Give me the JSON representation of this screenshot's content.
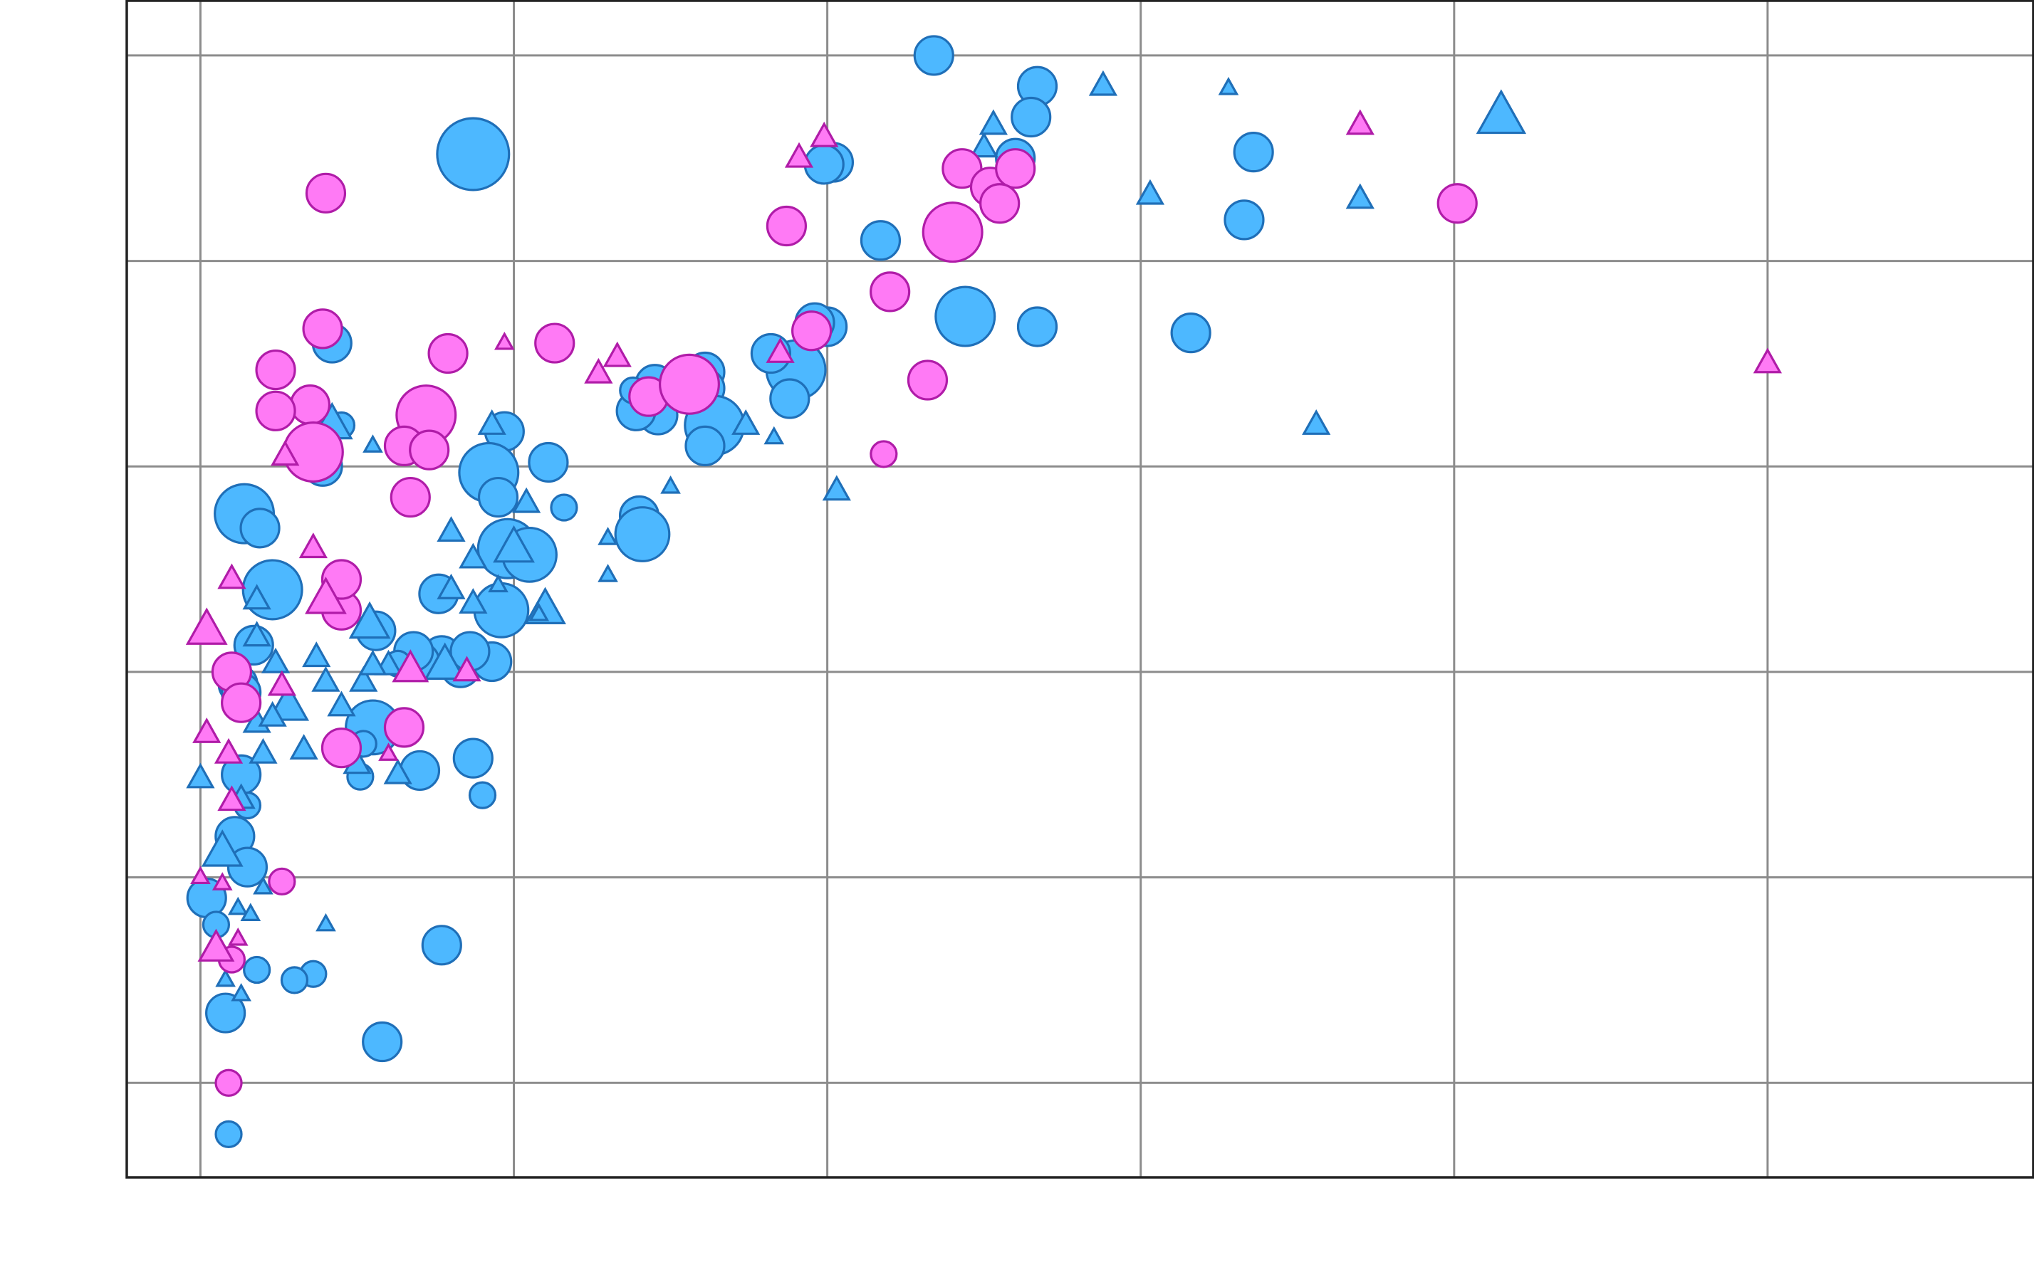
{
  "chart_data": {
    "type": "scatter",
    "title": "",
    "xlabel": "",
    "ylabel": "",
    "xlim": [
      -0.235,
      5.85
    ],
    "ylim": [
      -0.46,
      5.27
    ],
    "x_gridlines": [
      0,
      1,
      2,
      3,
      4,
      5
    ],
    "y_gridlines": [
      0,
      1,
      2,
      3,
      4,
      5
    ],
    "grid": true,
    "legend": "none",
    "series": [
      {
        "color": "#4db8ff",
        "stroke": "#1f6fb8",
        "points": [
          [
            0.87,
            4.52,
            2.8,
            "circle"
          ],
          [
            2.34,
            5.0,
            1.5,
            "circle"
          ],
          [
            2.67,
            4.85,
            1.5,
            "circle"
          ],
          [
            2.65,
            4.7,
            1.5,
            "circle"
          ],
          [
            2.6,
            4.5,
            1.5,
            "circle"
          ],
          [
            2.17,
            4.1,
            1.5,
            "circle"
          ],
          [
            2.44,
            3.73,
            2.3,
            "circle"
          ],
          [
            2.67,
            3.68,
            1.5,
            "circle"
          ],
          [
            2.0,
            3.68,
            1.5,
            "circle"
          ],
          [
            1.96,
            3.7,
            1.5,
            "circle"
          ],
          [
            1.45,
            3.4,
            1.5,
            "circle"
          ],
          [
            1.46,
            3.25,
            1.5,
            "circle"
          ],
          [
            1.61,
            3.46,
            1.5,
            "circle"
          ],
          [
            1.9,
            3.47,
            2.3,
            "circle"
          ],
          [
            1.61,
            3.38,
            1.5,
            "circle"
          ],
          [
            1.64,
            3.2,
            2.3,
            "circle"
          ],
          [
            1.88,
            3.33,
            1.5,
            "circle"
          ],
          [
            0.42,
            3.6,
            1.5,
            "circle"
          ],
          [
            0.45,
            3.2,
            1.0,
            "circle"
          ],
          [
            0.39,
            3.0,
            1.5,
            "circle"
          ],
          [
            0.97,
            3.17,
            1.5,
            "circle"
          ],
          [
            0.92,
            2.97,
            2.3,
            "circle"
          ],
          [
            0.95,
            2.85,
            1.5,
            "circle"
          ],
          [
            0.98,
            2.6,
            2.3,
            "circle"
          ],
          [
            1.05,
            2.57,
            2.1,
            "circle"
          ],
          [
            1.4,
            2.76,
            1.5,
            "circle"
          ],
          [
            1.41,
            2.67,
            2.1,
            "circle"
          ],
          [
            0.14,
            2.77,
            2.3,
            "circle"
          ],
          [
            0.19,
            2.7,
            1.5,
            "circle"
          ],
          [
            0.23,
            2.4,
            2.3,
            "circle"
          ],
          [
            0.17,
            2.13,
            1.5,
            "circle"
          ],
          [
            0.12,
            1.94,
            1.5,
            "circle"
          ],
          [
            0.96,
            2.3,
            2.1,
            "circle"
          ],
          [
            0.76,
            2.38,
            1.5,
            "circle"
          ],
          [
            0.77,
            2.08,
            1.5,
            "circle"
          ],
          [
            0.83,
            2.02,
            1.5,
            "circle"
          ],
          [
            0.93,
            2.05,
            1.5,
            "circle"
          ],
          [
            0.86,
            2.1,
            1.5,
            "circle"
          ],
          [
            0.7,
            2.05,
            1.5,
            "circle"
          ],
          [
            0.56,
            2.2,
            1.5,
            "circle"
          ],
          [
            0.68,
            2.1,
            1.5,
            "circle"
          ],
          [
            0.63,
            2.04,
            1.0,
            "circle"
          ],
          [
            0.55,
            1.73,
            2.1,
            "circle"
          ],
          [
            0.7,
            1.52,
            1.5,
            "circle"
          ],
          [
            0.87,
            1.58,
            1.5,
            "circle"
          ],
          [
            0.13,
            1.9,
            1.5,
            "circle"
          ],
          [
            0.11,
            1.2,
            1.5,
            "circle"
          ],
          [
            0.15,
            1.05,
            1.5,
            "circle"
          ],
          [
            0.13,
            1.5,
            1.5,
            "circle"
          ],
          [
            0.02,
            0.9,
            1.5,
            "circle"
          ],
          [
            0.05,
            0.77,
            1.0,
            "circle"
          ],
          [
            0.36,
            0.53,
            1.0,
            "circle"
          ],
          [
            0.08,
            0.34,
            1.5,
            "circle"
          ],
          [
            0.18,
            0.55,
            1.0,
            "circle"
          ],
          [
            0.77,
            0.67,
            1.5,
            "circle"
          ],
          [
            0.51,
            1.49,
            1.0,
            "circle"
          ],
          [
            0.15,
            1.35,
            1.0,
            "circle"
          ],
          [
            0.58,
            0.2,
            1.5,
            "circle"
          ],
          [
            0.3,
            0.5,
            1.0,
            "circle"
          ],
          [
            0.52,
            1.65,
            1.0,
            "circle"
          ],
          [
            0.9,
            1.4,
            1.0,
            "circle"
          ],
          [
            0.09,
            -0.25,
            1.0,
            "circle"
          ],
          [
            3.16,
            3.65,
            1.5,
            "circle"
          ],
          [
            1.61,
            3.1,
            1.5,
            "circle"
          ],
          [
            1.39,
            3.27,
            1.5,
            "circle"
          ],
          [
            1.38,
            3.37,
            1.0,
            "circle"
          ],
          [
            3.36,
            4.53,
            1.5,
            "circle"
          ],
          [
            3.33,
            4.2,
            1.5,
            "circle"
          ],
          [
            2.02,
            4.48,
            1.5,
            "circle"
          ],
          [
            1.99,
            4.47,
            1.5,
            "circle"
          ],
          [
            1.82,
            3.55,
            1.5,
            "circle"
          ],
          [
            1.16,
            2.8,
            1.0,
            "circle"
          ],
          [
            1.11,
            3.02,
            1.5,
            "circle"
          ],
          [
            4.15,
            4.7,
            2.8,
            "triangle"
          ],
          [
            2.88,
            4.85,
            1.5,
            "triangle"
          ],
          [
            2.5,
            4.55,
            1.5,
            "triangle"
          ],
          [
            3.03,
            4.32,
            1.5,
            "triangle"
          ],
          [
            3.7,
            4.3,
            1.5,
            "triangle"
          ],
          [
            2.53,
            4.66,
            1.5,
            "triangle"
          ],
          [
            3.28,
            4.84,
            1.0,
            "triangle"
          ],
          [
            1.74,
            3.2,
            1.5,
            "triangle"
          ],
          [
            3.56,
            3.2,
            1.5,
            "triangle"
          ],
          [
            1.83,
            3.14,
            1.0,
            "triangle"
          ],
          [
            2.03,
            2.88,
            1.5,
            "triangle"
          ],
          [
            1.3,
            2.65,
            1.0,
            "triangle"
          ],
          [
            1.04,
            2.82,
            1.5,
            "triangle"
          ],
          [
            0.93,
            3.2,
            1.5,
            "triangle"
          ],
          [
            0.75,
            3.27,
            1.0,
            "triangle"
          ],
          [
            0.42,
            3.2,
            2.3,
            "triangle"
          ],
          [
            0.55,
            3.1,
            1.0,
            "triangle"
          ],
          [
            1.0,
            2.6,
            2.3,
            "triangle"
          ],
          [
            1.1,
            2.3,
            2.3,
            "triangle"
          ],
          [
            0.8,
            2.4,
            1.5,
            "triangle"
          ],
          [
            0.87,
            2.33,
            1.5,
            "triangle"
          ],
          [
            1.3,
            2.47,
            1.0,
            "triangle"
          ],
          [
            1.08,
            2.28,
            1.0,
            "triangle"
          ],
          [
            0.95,
            2.42,
            1.0,
            "triangle"
          ],
          [
            0.54,
            2.23,
            2.3,
            "triangle"
          ],
          [
            0.18,
            2.35,
            1.5,
            "triangle"
          ],
          [
            0.78,
            2.03,
            2.3,
            "triangle"
          ],
          [
            0.18,
            2.17,
            1.5,
            "triangle"
          ],
          [
            0.24,
            2.04,
            1.5,
            "triangle"
          ],
          [
            0.37,
            2.07,
            1.5,
            "triangle"
          ],
          [
            0.52,
            1.95,
            1.5,
            "triangle"
          ],
          [
            0.6,
            2.03,
            1.5,
            "triangle"
          ],
          [
            0.55,
            2.03,
            1.5,
            "triangle"
          ],
          [
            0.4,
            1.95,
            1.5,
            "triangle"
          ],
          [
            0.28,
            1.83,
            2.3,
            "triangle"
          ],
          [
            0.45,
            1.83,
            1.5,
            "triangle"
          ],
          [
            0.18,
            1.75,
            1.5,
            "triangle"
          ],
          [
            0.33,
            1.62,
            1.5,
            "triangle"
          ],
          [
            0.2,
            1.6,
            1.5,
            "triangle"
          ],
          [
            0.5,
            1.55,
            1.5,
            "triangle"
          ],
          [
            0.0,
            1.48,
            1.5,
            "triangle"
          ],
          [
            0.13,
            1.38,
            1.5,
            "triangle"
          ],
          [
            0.07,
            1.12,
            2.3,
            "triangle"
          ],
          [
            0.2,
            0.95,
            1.0,
            "triangle"
          ],
          [
            0.12,
            0.85,
            1.0,
            "triangle"
          ],
          [
            0.16,
            0.82,
            1.0,
            "triangle"
          ],
          [
            0.4,
            0.77,
            1.0,
            "triangle"
          ],
          [
            0.08,
            0.5,
            1.0,
            "triangle"
          ],
          [
            0.13,
            0.43,
            1.0,
            "triangle"
          ],
          [
            0.63,
            1.5,
            1.5,
            "triangle"
          ],
          [
            0.8,
            2.68,
            1.5,
            "triangle"
          ],
          [
            1.5,
            2.9,
            1.0,
            "triangle"
          ],
          [
            0.87,
            2.55,
            1.5,
            "triangle"
          ],
          [
            0.23,
            1.78,
            1.5,
            "triangle"
          ]
        ]
      },
      {
        "color": "#ff7af5",
        "stroke": "#b01ca8",
        "points": [
          [
            0.4,
            4.33,
            1.5,
            "circle"
          ],
          [
            0.39,
            3.67,
            1.5,
            "circle"
          ],
          [
            0.35,
            3.3,
            1.5,
            "circle"
          ],
          [
            0.24,
            3.47,
            1.5,
            "circle"
          ],
          [
            0.24,
            3.27,
            1.5,
            "circle"
          ],
          [
            0.72,
            3.25,
            2.3,
            "circle"
          ],
          [
            0.65,
            3.1,
            1.5,
            "circle"
          ],
          [
            0.73,
            3.08,
            1.5,
            "circle"
          ],
          [
            0.36,
            3.07,
            2.3,
            "circle"
          ],
          [
            0.79,
            3.55,
            1.5,
            "circle"
          ],
          [
            1.13,
            3.6,
            1.5,
            "circle"
          ],
          [
            1.43,
            3.34,
            1.5,
            "circle"
          ],
          [
            1.56,
            3.4,
            2.3,
            "circle"
          ],
          [
            1.95,
            3.66,
            1.5,
            "circle"
          ],
          [
            1.87,
            4.17,
            1.5,
            "circle"
          ],
          [
            2.2,
            3.85,
            1.5,
            "circle"
          ],
          [
            2.4,
            4.14,
            2.3,
            "circle"
          ],
          [
            2.43,
            4.45,
            1.5,
            "circle"
          ],
          [
            2.52,
            4.36,
            1.5,
            "circle"
          ],
          [
            2.6,
            4.45,
            1.5,
            "circle"
          ],
          [
            2.55,
            4.28,
            1.5,
            "circle"
          ],
          [
            2.32,
            3.42,
            1.5,
            "circle"
          ],
          [
            2.18,
            3.06,
            1.0,
            "circle"
          ],
          [
            4.01,
            4.28,
            1.5,
            "circle"
          ],
          [
            0.67,
            2.85,
            1.5,
            "circle"
          ],
          [
            0.45,
            2.38,
            1.0,
            "circle"
          ],
          [
            0.45,
            2.3,
            1.5,
            "circle"
          ],
          [
            0.45,
            2.45,
            1.5,
            "circle"
          ],
          [
            0.1,
            2.0,
            1.5,
            "circle"
          ],
          [
            0.13,
            1.85,
            1.5,
            "circle"
          ],
          [
            0.45,
            1.63,
            1.5,
            "circle"
          ],
          [
            0.65,
            1.73,
            1.5,
            "circle"
          ],
          [
            0.09,
            0.0,
            1.0,
            "circle"
          ],
          [
            0.26,
            0.98,
            1.0,
            "circle"
          ],
          [
            0.1,
            0.6,
            1.0,
            "circle"
          ],
          [
            1.99,
            4.6,
            1.5,
            "triangle"
          ],
          [
            1.91,
            4.5,
            1.5,
            "triangle"
          ],
          [
            3.7,
            4.66,
            1.5,
            "triangle"
          ],
          [
            5.0,
            3.5,
            1.5,
            "triangle"
          ],
          [
            1.85,
            3.55,
            1.5,
            "triangle"
          ],
          [
            1.33,
            3.53,
            1.5,
            "triangle"
          ],
          [
            1.27,
            3.45,
            1.5,
            "triangle"
          ],
          [
            0.97,
            3.6,
            1.0,
            "triangle"
          ],
          [
            0.27,
            3.05,
            1.5,
            "triangle"
          ],
          [
            0.36,
            2.6,
            1.5,
            "triangle"
          ],
          [
            0.4,
            2.35,
            2.3,
            "triangle"
          ],
          [
            0.02,
            2.2,
            2.3,
            "triangle"
          ],
          [
            0.1,
            2.45,
            1.5,
            "triangle"
          ],
          [
            0.85,
            2.0,
            1.5,
            "triangle"
          ],
          [
            0.67,
            2.01,
            2.0,
            "triangle"
          ],
          [
            0.26,
            1.93,
            1.5,
            "triangle"
          ],
          [
            0.02,
            1.7,
            1.5,
            "triangle"
          ],
          [
            0.09,
            1.6,
            1.5,
            "triangle"
          ],
          [
            0.1,
            1.37,
            1.5,
            "triangle"
          ],
          [
            0.0,
            1.0,
            1.0,
            "triangle"
          ],
          [
            0.07,
            0.97,
            1.0,
            "triangle"
          ],
          [
            0.05,
            0.65,
            2.0,
            "triangle"
          ],
          [
            0.12,
            0.7,
            1.0,
            "triangle"
          ],
          [
            0.6,
            1.6,
            1.0,
            "triangle"
          ]
        ]
      }
    ]
  }
}
